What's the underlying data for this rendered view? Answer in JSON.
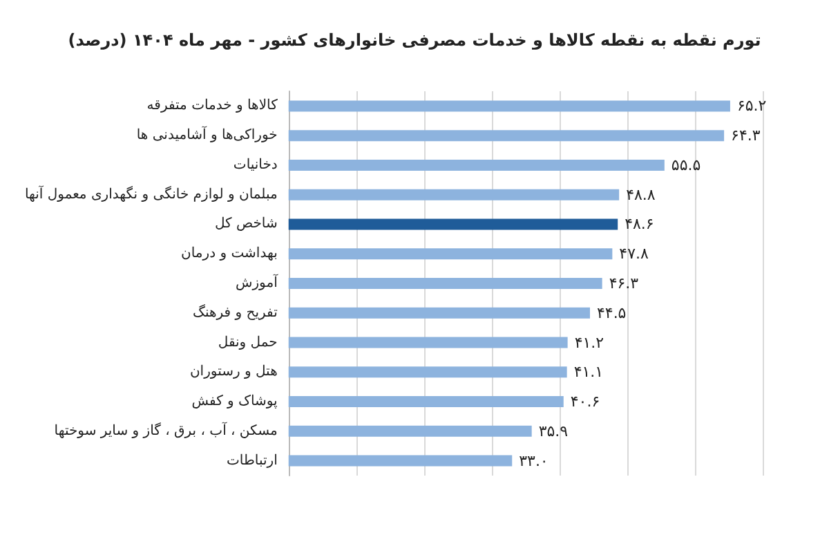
{
  "chart_data": {
    "type": "bar",
    "orientation": "horizontal",
    "title": "تورم نقطه به نقطه کالاها و خدمات مصرفی خانوارهای کشور - مهر ماه ۱۴۰۴ (درصد)",
    "categories": [
      "کالاها و خدمات متفرقه",
      "خوراکی‌ها و آشامیدنی ها",
      "دخانیات",
      "مبلمان و لوازم خانگی و نگهداری معمول آنها",
      "شاخص کل",
      "بهداشت و درمان",
      "آموزش",
      "تفریح و فرهنگ",
      "حمل ونقل",
      "هتل و رستوران",
      "پوشاک و کفش",
      "مسکن ، آب ، برق ، گاز و سایر سوختها",
      "ارتباطات"
    ],
    "values": [
      65.2,
      64.3,
      55.5,
      48.8,
      48.6,
      47.8,
      46.3,
      44.5,
      41.2,
      41.1,
      40.6,
      35.9,
      33.0
    ],
    "value_labels": [
      "۶۵.۲",
      "۶۴.۳",
      "۵۵.۵",
      "۴۸.۸",
      "۴۸.۶",
      "۴۷.۸",
      "۴۶.۳",
      "۴۴.۵",
      "۴۱.۲",
      "۴۱.۱",
      "۴۰.۶",
      "۳۵.۹",
      "۳۳.۰"
    ],
    "colors": [
      "#8db3de",
      "#8db3de",
      "#8db3de",
      "#8db3de",
      "#1f5c99",
      "#8db3de",
      "#8db3de",
      "#8db3de",
      "#8db3de",
      "#8db3de",
      "#8db3de",
      "#8db3de",
      "#8db3de"
    ],
    "xlim": [
      0,
      70
    ],
    "xticks": [
      {
        "value": 0,
        "label": null
      },
      {
        "value": 10,
        "label": null
      },
      {
        "value": 20,
        "label": null
      },
      {
        "value": 30,
        "label": null
      },
      {
        "value": 40,
        "label": null
      },
      {
        "value": 50,
        "label": null
      },
      {
        "value": 60,
        "label": null
      },
      {
        "value": 70,
        "label": null
      }
    ],
    "grid": "x"
  }
}
